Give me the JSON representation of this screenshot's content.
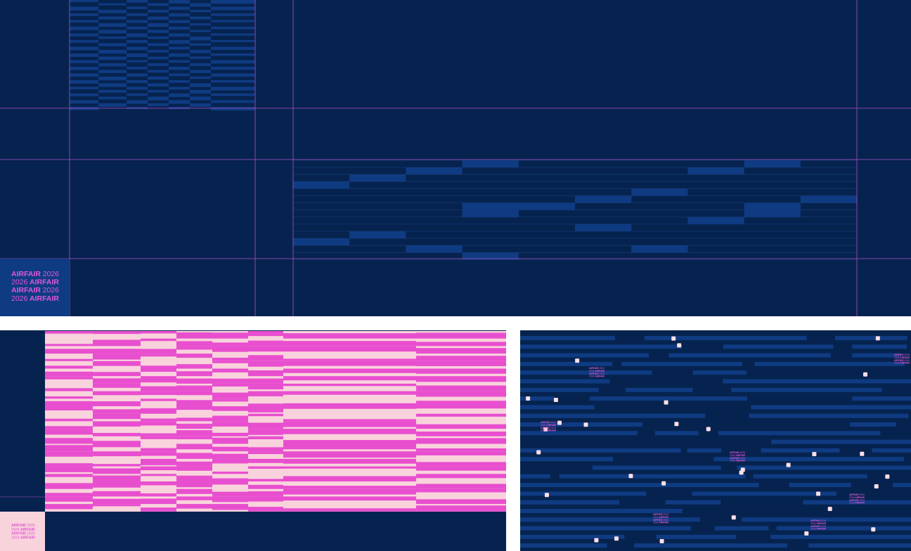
{
  "logo": {
    "lines": [
      [
        "AIRFAIR",
        "2026"
      ],
      [
        "2026",
        "AIRFAIR"
      ],
      [
        "AIRFAIR",
        "2026"
      ],
      [
        "2026",
        "AIRFAIR"
      ]
    ]
  }
}
